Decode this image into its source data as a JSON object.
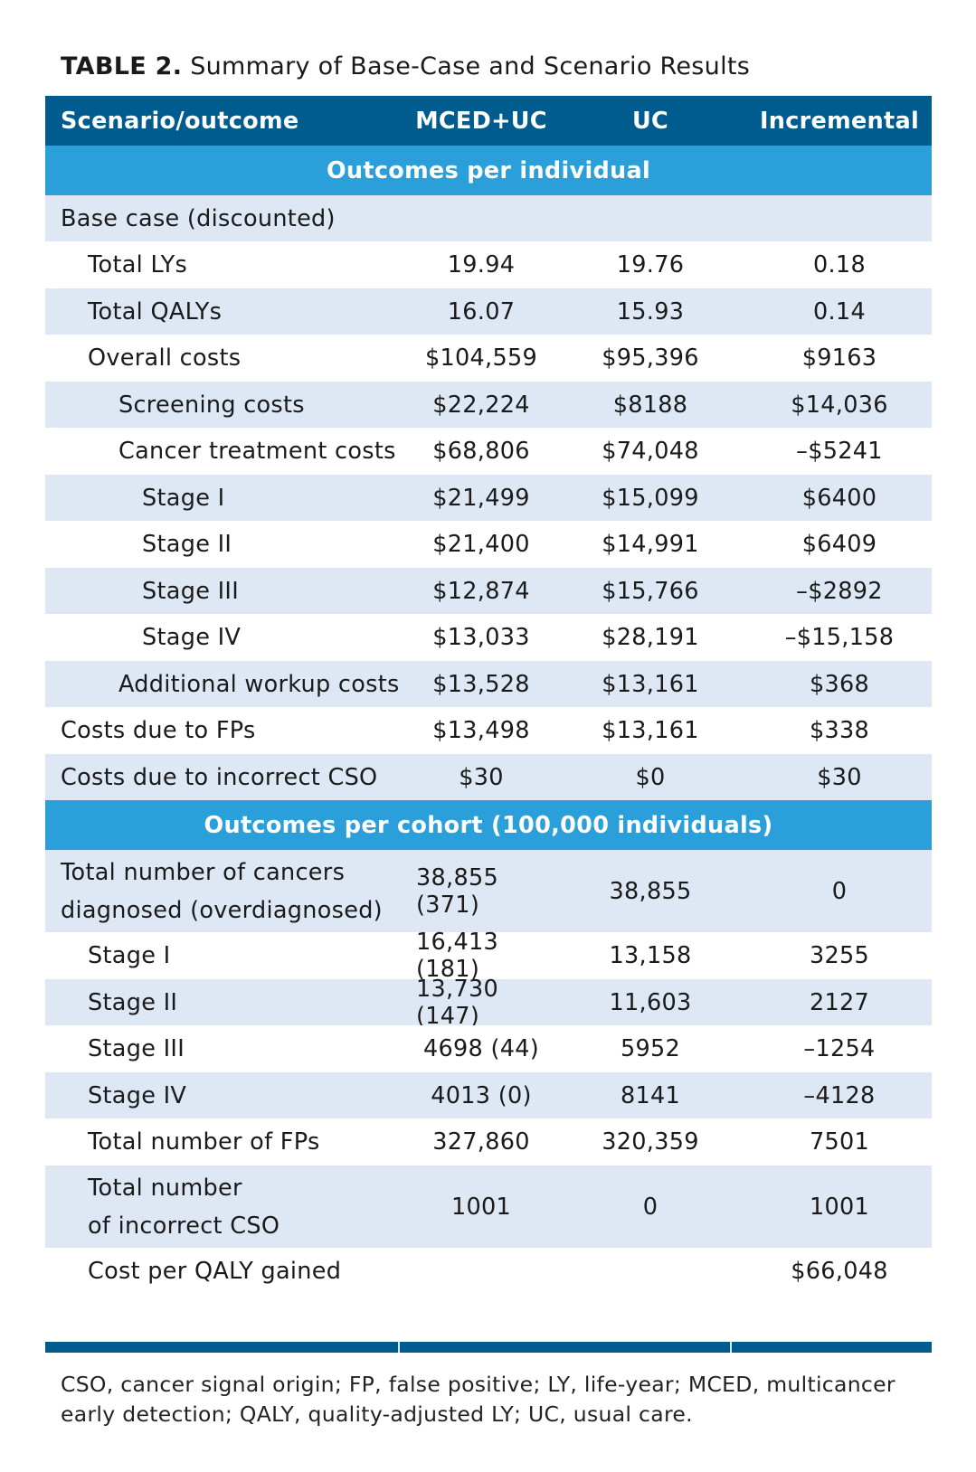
{
  "title": {
    "lead": "TABLE 2.",
    "text": "Summary of Base-Case and Scenario Results"
  },
  "columns": [
    "Scenario/outcome",
    "MCED+UC",
    "UC",
    "Incremental"
  ],
  "section1": "Outcomes per individual",
  "rows1": [
    {
      "label": "Base case (discounted)",
      "level": 0,
      "v1": "",
      "v2": "",
      "v3": ""
    },
    {
      "label": "Total LYs",
      "level": 1,
      "v1": "19.94",
      "v2": "19.76",
      "v3": "0.18"
    },
    {
      "label": "Total QALYs",
      "level": 1,
      "v1": "16.07",
      "v2": "15.93",
      "v3": "0.14"
    },
    {
      "label": "Overall costs",
      "level": 1,
      "v1": "$104,559",
      "v2": "$95,396",
      "v3": "$9163"
    },
    {
      "label": "Screening costs",
      "level": 2,
      "v1": "$22,224",
      "v2": "$8188",
      "v3": "$14,036"
    },
    {
      "label": "Cancer treatment costs",
      "level": 2,
      "v1": "$68,806",
      "v2": "$74,048",
      "v3": "–$5241"
    },
    {
      "label": "Stage I",
      "level": 3,
      "v1": "$21,499",
      "v2": "$15,099",
      "v3": "$6400"
    },
    {
      "label": "Stage II",
      "level": 3,
      "v1": "$21,400",
      "v2": "$14,991",
      "v3": "$6409"
    },
    {
      "label": "Stage III",
      "level": 3,
      "v1": "$12,874",
      "v2": "$15,766",
      "v3": "–$2892"
    },
    {
      "label": "Stage IV",
      "level": 3,
      "v1": "$13,033",
      "v2": "$28,191",
      "v3": "–$15,158"
    },
    {
      "label": "Additional workup costs",
      "level": 2,
      "v1": "$13,528",
      "v2": "$13,161",
      "v3": "$368"
    },
    {
      "label": "Costs due to FPs",
      "level": 0,
      "v1": "$13,498",
      "v2": "$13,161",
      "v3": "$338"
    },
    {
      "label": "Costs due to incorrect CSO",
      "level": 0,
      "v1": "$30",
      "v2": "$0",
      "v3": "$30"
    }
  ],
  "section2": "Outcomes per cohort (100,000 individuals)",
  "rows2": [
    {
      "label": "Total number of cancers\ndiagnosed (overdiagnosed)",
      "level": 0,
      "v1": "38,855 (371)",
      "v2": "38,855",
      "v3": "0"
    },
    {
      "label": "Stage I",
      "level": 1,
      "v1": "16,413 (181)",
      "v2": "13,158",
      "v3": "3255"
    },
    {
      "label": "Stage II",
      "level": 1,
      "v1": "13,730 (147)",
      "v2": "11,603",
      "v3": "2127"
    },
    {
      "label": "Stage III",
      "level": 1,
      "v1": "4698 (44)",
      "v2": "5952",
      "v3": "–1254"
    },
    {
      "label": "Stage IV",
      "level": 1,
      "v1": "4013 (0)",
      "v2": "8141",
      "v3": "–4128"
    },
    {
      "label": "Total number of FPs",
      "level": 1,
      "v1": "327,860",
      "v2": "320,359",
      "v3": "7501"
    },
    {
      "label": "Total number\nof incorrect CSO",
      "level": 1,
      "v1": "1001",
      "v2": "0",
      "v3": "1001"
    },
    {
      "label": "Cost per QALY gained",
      "level": 1,
      "v1": "",
      "v2": "",
      "v3": "$66,048"
    }
  ],
  "footnote": "CSO, cancer signal origin; FP, false positive; LY, life-year; MCED, multicancer early detection; QALY, quality-adjusted LY; UC, usual care."
}
